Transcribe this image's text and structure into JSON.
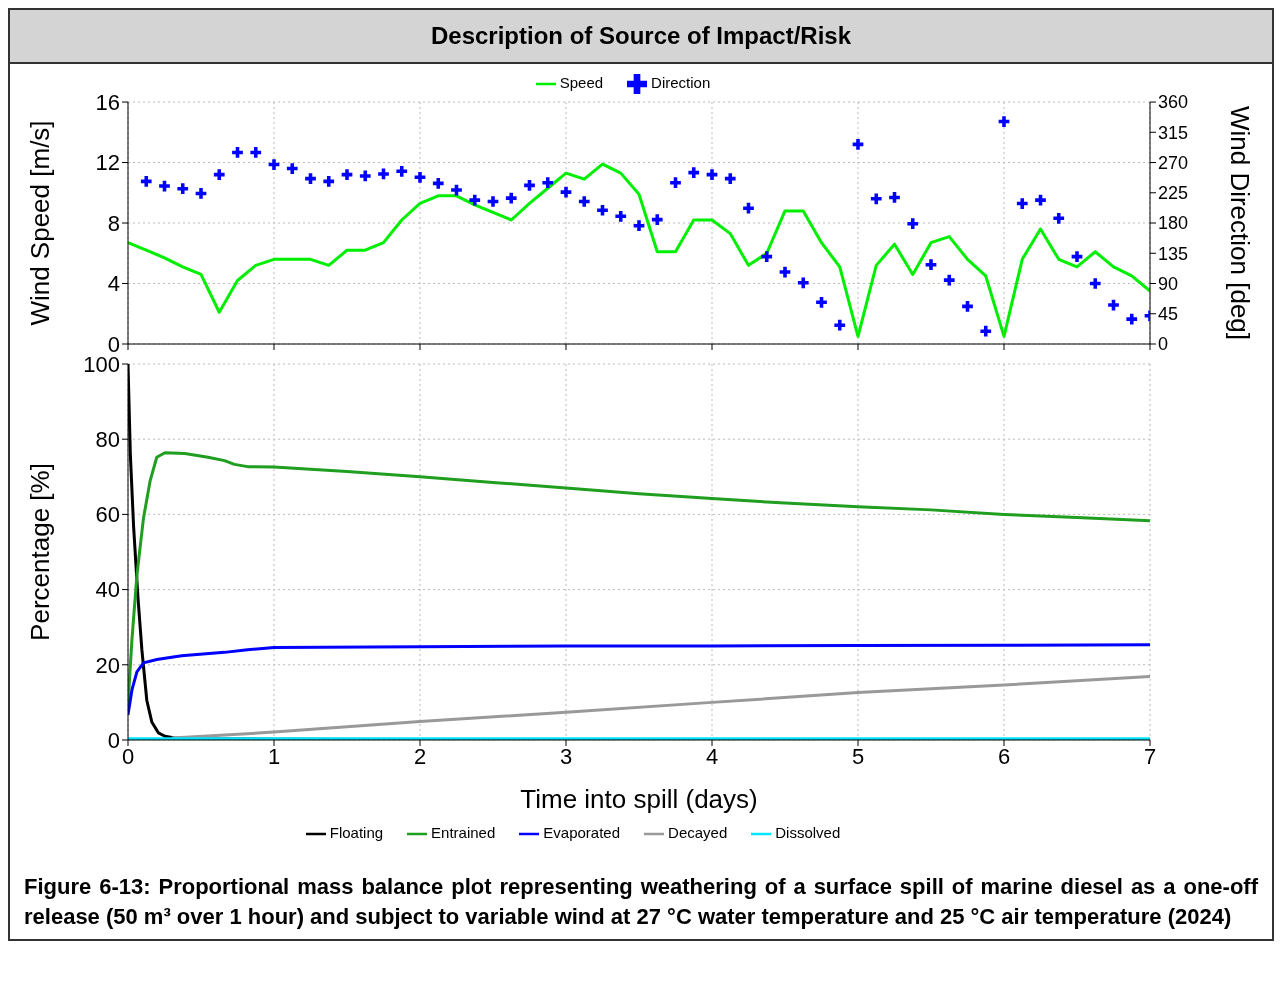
{
  "chart_data": [
    {
      "type": "line",
      "title": "Description of Source of Impact/Risk",
      "ylabel": "Wind Speed [m/s]",
      "y2label": "Wind Direction [deg]",
      "xlim": [
        0,
        7
      ],
      "xticks": [
        0,
        1,
        2,
        3,
        4,
        5,
        6,
        7
      ],
      "ylim": [
        0,
        16
      ],
      "yticks": [
        0,
        4,
        8,
        12,
        16
      ],
      "y2lim": [
        0,
        360
      ],
      "y2ticks": [
        0,
        45,
        90,
        135,
        180,
        225,
        270,
        315,
        360
      ],
      "grid": true,
      "legend": "top",
      "tick_labels": "y",
      "series": [
        {
          "name": "Speed",
          "color": "#00ee00",
          "marker": "none",
          "x": [
            0,
            0.125,
            0.25,
            0.375,
            0.5,
            0.625,
            0.75,
            0.875,
            1,
            1.125,
            1.25,
            1.375,
            1.5,
            1.625,
            1.75,
            1.875,
            2,
            2.125,
            2.25,
            2.375,
            2.5,
            2.625,
            2.75,
            2.875,
            3,
            3.125,
            3.25,
            3.375,
            3.5,
            3.625,
            3.75,
            3.875,
            4,
            4.125,
            4.25,
            4.375,
            4.5,
            4.625,
            4.75,
            4.875,
            5,
            5.125,
            5.25,
            5.375,
            5.5,
            5.625,
            5.75,
            5.875,
            6,
            6.125,
            6.25,
            6.375,
            6.5,
            6.625,
            6.75,
            6.875,
            7
          ],
          "values": [
            6.7,
            6.2,
            5.7,
            5.1,
            4.6,
            2.1,
            4.2,
            5.2,
            5.6,
            5.6,
            5.6,
            5.2,
            6.2,
            6.2,
            6.7,
            8.2,
            9.3,
            9.8,
            9.8,
            9.2,
            8.7,
            8.2,
            9.3,
            10.3,
            11.3,
            10.9,
            11.9,
            11.3,
            9.9,
            6.1,
            6.1,
            8.2,
            8.2,
            7.3,
            5.2,
            6.0,
            8.8,
            8.8,
            6.7,
            5.1,
            0.5,
            5.2,
            6.6,
            4.6,
            6.7,
            7.1,
            5.6,
            4.5,
            0.5,
            5.6,
            7.6,
            5.6,
            5.1,
            6.1,
            5.1,
            4.5,
            3.5
          ]
        },
        {
          "name": "Direction",
          "type": "scatter",
          "axis": "y2",
          "color": "#0000ff",
          "marker": "cross",
          "x": [
            0.125,
            0.25,
            0.375,
            0.5,
            0.625,
            0.75,
            0.875,
            1,
            1.125,
            1.25,
            1.375,
            1.5,
            1.625,
            1.75,
            1.875,
            2,
            2.125,
            2.25,
            2.375,
            2.5,
            2.625,
            2.75,
            2.875,
            3,
            3.125,
            3.25,
            3.375,
            3.5,
            3.625,
            3.75,
            3.875,
            4,
            4.125,
            4.25,
            4.375,
            4.5,
            4.625,
            4.75,
            4.875,
            5,
            5.125,
            5.25,
            5.375,
            5.5,
            5.625,
            5.75,
            5.875,
            6,
            6.125,
            6.25,
            6.375,
            6.5,
            6.625,
            6.75,
            6.875,
            7
          ],
          "values": [
            242,
            235,
            231,
            224,
            252,
            285,
            285,
            267,
            261,
            246,
            242,
            252,
            250,
            253,
            257,
            248,
            239,
            229,
            214,
            212,
            217,
            236,
            240,
            226,
            212,
            199,
            190,
            176,
            185,
            240,
            255,
            252,
            246,
            202,
            130,
            107,
            91,
            62,
            28,
            297,
            216,
            218,
            179,
            118,
            95,
            56,
            19,
            331,
            209,
            214,
            187,
            130,
            90,
            58,
            37,
            42
          ]
        }
      ]
    },
    {
      "type": "line",
      "xlabel": "Time into spill (days)",
      "ylabel": "Percentage  [%]",
      "xlim": [
        0,
        7
      ],
      "xticks": [
        0,
        1,
        2,
        3,
        4,
        5,
        6,
        7
      ],
      "ylim": [
        0,
        100
      ],
      "yticks": [
        0,
        20,
        40,
        60,
        80,
        100
      ],
      "grid": true,
      "legend": "bottom",
      "annotations": [
        "Figure 6-13: Proportional mass balance plot representing weathering of a surface spill of marine diesel as a one-off release (50 m³ over 1 hour) and subject to variable wind at 27 °C water temperature and 25 °C air temperature (2024)"
      ],
      "series": [
        {
          "name": "Floating",
          "color": "#000000",
          "x": [
            0,
            0.016,
            0.038,
            0.068,
            0.095,
            0.129,
            0.163,
            0.208,
            0.253,
            0.32,
            0.5,
            1,
            2,
            3,
            4,
            5,
            6,
            7
          ],
          "values": [
            100,
            76,
            57,
            38,
            24,
            10.5,
            4.8,
            1.9,
            1,
            0.5,
            0.3,
            0.2,
            0.1,
            0,
            0,
            0,
            0,
            0
          ]
        },
        {
          "name": "Entrained",
          "color": "#1f9e1f",
          "x": [
            0,
            0.027,
            0.061,
            0.106,
            0.152,
            0.197,
            0.253,
            0.389,
            0.548,
            0.661,
            0.729,
            0.819,
            1,
            1.5,
            2,
            2.5,
            3,
            3.5,
            4,
            4.5,
            5,
            5.5,
            6,
            6.5,
            7
          ],
          "values": [
            9.5,
            26.7,
            43.8,
            59,
            69,
            75.2,
            76.4,
            76.2,
            75.2,
            74.3,
            73.3,
            72.7,
            72.6,
            71.4,
            70,
            68.5,
            67,
            65.5,
            64.2,
            63,
            62,
            61.2,
            60,
            59.2,
            58.3
          ]
        },
        {
          "name": "Evaporated",
          "color": "#0000ff",
          "x": [
            0,
            0.027,
            0.061,
            0.106,
            0.197,
            0.367,
            0.661,
            0.819,
            1,
            2,
            3,
            4,
            5,
            6,
            7
          ],
          "values": [
            6.7,
            13.3,
            18.1,
            20.5,
            21.4,
            22.4,
            23.3,
            24,
            24.6,
            24.8,
            25,
            25,
            25.1,
            25.2,
            25.3
          ]
        },
        {
          "name": "Decayed",
          "color": "#999999",
          "x": [
            0.3,
            1,
            2,
            3,
            4,
            5,
            6,
            7
          ],
          "values": [
            0.5,
            2.1,
            4.9,
            7.4,
            10,
            12.6,
            14.6,
            16.9
          ]
        },
        {
          "name": "Dissolved",
          "color": "#00e5ff",
          "x": [
            0,
            7
          ],
          "values": [
            0.3,
            0.3
          ]
        }
      ]
    }
  ]
}
